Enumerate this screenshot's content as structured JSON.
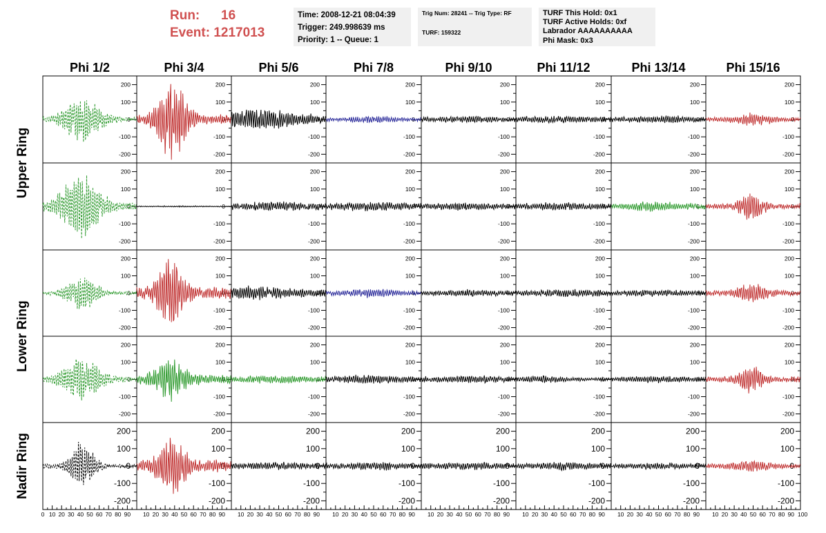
{
  "header": {
    "run_label": "Run:",
    "run_value": "16",
    "event_label": "Event:",
    "event_value": "1217013",
    "time": "Time: 2008-12-21 08:04:39",
    "trigger": "Trigger: 249.998639 ms",
    "priority": "Priority: 1 -- Queue: 1",
    "trig_num": "Trig Num: 28241 -- Trig Type: RF",
    "turf": "TURF: 159322",
    "turf_this_hold": "TURF This Hold: 0x1",
    "turf_active_holds": "TURF Active Holds: 0xf",
    "labrador": "Labrador AAAAAAAAAA",
    "phi_mask": "Phi Mask: 0x3"
  },
  "chart_data": {
    "type": "line",
    "columns": [
      "Phi 1/2",
      "Phi 3/4",
      "Phi 5/6",
      "Phi 7/8",
      "Phi 9/10",
      "Phi 11/12",
      "Phi 13/14",
      "Phi 15/16"
    ],
    "ring_labels": [
      {
        "text": "Upper Ring",
        "rows": [
          0,
          1
        ]
      },
      {
        "text": "Lower Ring",
        "rows": [
          2,
          3
        ]
      },
      {
        "text": "Nadir Ring",
        "rows": [
          4,
          4
        ]
      }
    ],
    "xlim": [
      0,
      100
    ],
    "ylim": [
      -250,
      250
    ],
    "x_ticks": [
      0,
      10,
      20,
      30,
      40,
      50,
      60,
      70,
      80,
      90
    ],
    "x_last_label": "100",
    "y_ticks": [
      -200,
      -100,
      0,
      100,
      200
    ],
    "colors": {
      "green": "#2e9a2e",
      "red": "#c03030",
      "black": "#000000",
      "blue": "#2a2a9a"
    },
    "panels": [
      [
        {
          "color": "green",
          "dashed": true,
          "center": 42,
          "width": 22,
          "peak": 120,
          "noise": 12
        },
        {
          "color": "red",
          "dashed": false,
          "center": 38,
          "width": 16,
          "peak": 230,
          "noise": 25
        },
        {
          "color": "black",
          "dashed": false,
          "center": 25,
          "width": 40,
          "peak": 40,
          "noise": 25
        },
        {
          "color": "blue",
          "dashed": false,
          "center": 50,
          "width": 25,
          "peak": 12,
          "noise": 10
        },
        {
          "color": "black",
          "dashed": false,
          "center": 50,
          "width": 30,
          "peak": 8,
          "noise": 12
        },
        {
          "color": "black",
          "dashed": false,
          "center": 50,
          "width": 30,
          "peak": 8,
          "noise": 14
        },
        {
          "color": "black",
          "dashed": false,
          "center": 50,
          "width": 30,
          "peak": 8,
          "noise": 14
        },
        {
          "color": "red",
          "dashed": false,
          "center": 50,
          "width": 20,
          "peak": 30,
          "noise": 12
        }
      ],
      [
        {
          "color": "green",
          "dashed": true,
          "center": 40,
          "width": 22,
          "peak": 200,
          "noise": 20
        },
        {
          "color": "black",
          "dashed": false,
          "center": 50,
          "width": 40,
          "peak": 2,
          "noise": 2
        },
        {
          "color": "black",
          "dashed": false,
          "center": 50,
          "width": 30,
          "peak": 10,
          "noise": 18
        },
        {
          "color": "black",
          "dashed": false,
          "center": 50,
          "width": 30,
          "peak": 10,
          "noise": 18
        },
        {
          "color": "black",
          "dashed": false,
          "center": 50,
          "width": 30,
          "peak": 8,
          "noise": 15
        },
        {
          "color": "black",
          "dashed": false,
          "center": 50,
          "width": 30,
          "peak": 8,
          "noise": 15
        },
        {
          "color": "green",
          "dashed": false,
          "center": 45,
          "width": 25,
          "peak": 15,
          "noise": 15
        },
        {
          "color": "red",
          "dashed": false,
          "center": 48,
          "width": 14,
          "peak": 75,
          "noise": 14
        }
      ],
      [
        {
          "color": "green",
          "dashed": true,
          "center": 42,
          "width": 18,
          "peak": 110,
          "noise": 10
        },
        {
          "color": "red",
          "dashed": false,
          "center": 36,
          "width": 15,
          "peak": 190,
          "noise": 30
        },
        {
          "color": "black",
          "dashed": false,
          "center": 20,
          "width": 40,
          "peak": 25,
          "noise": 18
        },
        {
          "color": "blue",
          "dashed": false,
          "center": 50,
          "width": 25,
          "peak": 15,
          "noise": 12
        },
        {
          "color": "black",
          "dashed": false,
          "center": 50,
          "width": 30,
          "peak": 8,
          "noise": 12
        },
        {
          "color": "black",
          "dashed": false,
          "center": 55,
          "width": 30,
          "peak": 10,
          "noise": 14
        },
        {
          "color": "black",
          "dashed": false,
          "center": 50,
          "width": 30,
          "peak": 8,
          "noise": 12
        },
        {
          "color": "red",
          "dashed": false,
          "center": 48,
          "width": 16,
          "peak": 50,
          "noise": 15
        }
      ],
      [
        {
          "color": "green",
          "dashed": true,
          "center": 42,
          "width": 22,
          "peak": 120,
          "noise": 15
        },
        {
          "color": "green",
          "dashed": false,
          "center": 35,
          "width": 16,
          "peak": 120,
          "noise": 25
        },
        {
          "color": "green",
          "dashed": false,
          "center": 40,
          "width": 35,
          "peak": 10,
          "noise": 14
        },
        {
          "color": "black",
          "dashed": false,
          "center": 50,
          "width": 30,
          "peak": 10,
          "noise": 16
        },
        {
          "color": "black",
          "dashed": false,
          "center": 50,
          "width": 30,
          "peak": 8,
          "noise": 14
        },
        {
          "color": "black",
          "dashed": false,
          "center": 30,
          "width": 20,
          "peak": 14,
          "noise": 10
        },
        {
          "color": "black",
          "dashed": false,
          "center": 50,
          "width": 30,
          "peak": 8,
          "noise": 12
        },
        {
          "color": "red",
          "dashed": false,
          "center": 48,
          "width": 14,
          "peak": 70,
          "noise": 15
        }
      ],
      [
        {
          "color": "black",
          "dashed": true,
          "center": 42,
          "width": 14,
          "peak": 140,
          "noise": 12
        },
        {
          "color": "red",
          "dashed": false,
          "center": 38,
          "width": 16,
          "peak": 150,
          "noise": 30
        },
        {
          "color": "black",
          "dashed": false,
          "center": 50,
          "width": 30,
          "peak": 10,
          "noise": 14
        },
        {
          "color": "black",
          "dashed": false,
          "center": 50,
          "width": 30,
          "peak": 10,
          "noise": 14
        },
        {
          "color": "black",
          "dashed": false,
          "center": 50,
          "width": 30,
          "peak": 10,
          "noise": 14
        },
        {
          "color": "black",
          "dashed": false,
          "center": 50,
          "width": 30,
          "peak": 10,
          "noise": 14
        },
        {
          "color": "black",
          "dashed": false,
          "center": 50,
          "width": 30,
          "peak": 8,
          "noise": 12
        },
        {
          "color": "red",
          "dashed": false,
          "center": 50,
          "width": 20,
          "peak": 25,
          "noise": 12
        }
      ]
    ]
  }
}
